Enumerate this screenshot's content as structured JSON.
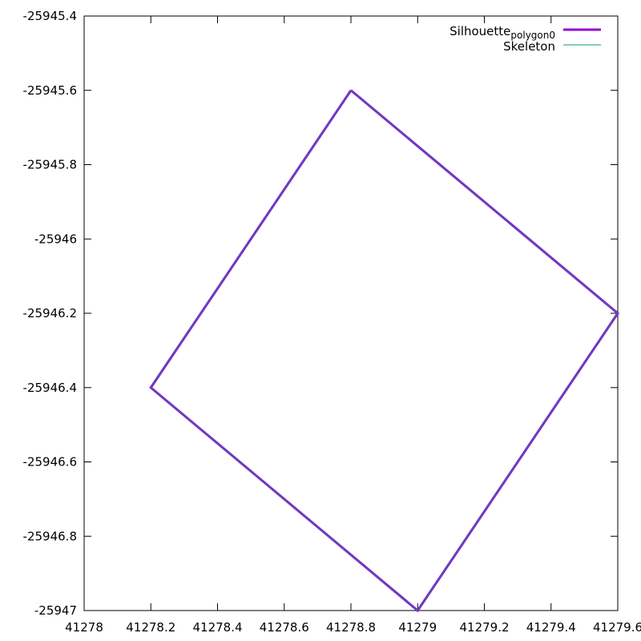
{
  "chart_data": {
    "type": "line",
    "title": "",
    "xlabel": "",
    "ylabel": "",
    "xlim": [
      41278,
      41279.6
    ],
    "ylim": [
      -25947,
      -25945.4
    ],
    "xticks": [
      41278,
      41278.2,
      41278.4,
      41278.6,
      41278.8,
      41279,
      41279.2,
      41279.4,
      41279.6
    ],
    "xtick_labels": [
      "41278",
      "41278.2",
      "41278.4",
      "41278.6",
      "41278.8",
      "41279",
      "41279.2",
      "41279.4",
      "41279.6"
    ],
    "yticks": [
      -25945.4,
      -25945.6,
      -25945.8,
      -25946,
      -25946.2,
      -25946.4,
      -25946.6,
      -25946.8,
      -25947
    ],
    "ytick_labels": [
      "-25945.4",
      "-25945.6",
      "-25945.8",
      "-25946",
      "-25946.2",
      "-25946.4",
      "-25946.6",
      "-25946.8",
      "-25947"
    ],
    "grid": false,
    "legend_position": "top-right",
    "series": [
      {
        "name": "Silhouette",
        "name_subscript": "polygon0",
        "color": "#9400d3",
        "x": [
          41278.8,
          41279.6,
          41279,
          41278.2,
          41278.8
        ],
        "y": [
          -25945.6,
          -25946.2,
          -25947,
          -25946.4,
          -25945.6
        ]
      },
      {
        "name": "Skeleton",
        "name_subscript": "",
        "color": "#009e73",
        "x": [
          41278.8,
          41279.6,
          41279,
          41278.2,
          41278.8
        ],
        "y": [
          -25945.6,
          -25946.2,
          -25947,
          -25946.4,
          -25945.6
        ]
      }
    ]
  }
}
